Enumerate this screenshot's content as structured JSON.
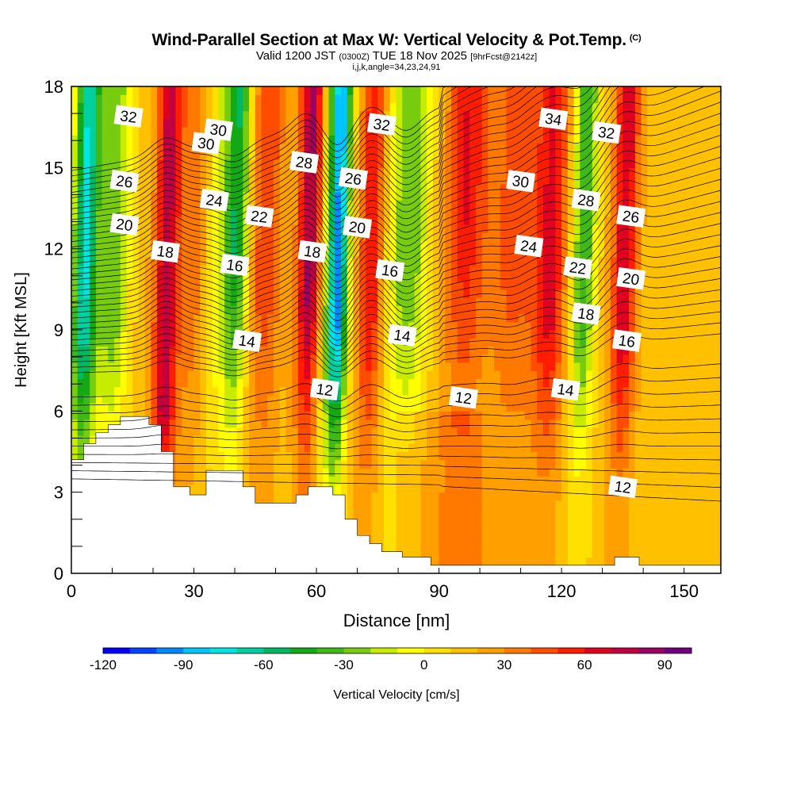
{
  "title": {
    "main": "Wind-Parallel Section at Max W: Vertical Velocity & Pot.Temp.",
    "tag": "(C)",
    "valid_a": "Valid 1200 JST",
    "valid_b": "(0300Z)",
    "valid_c": "TUE 18 Nov 2025",
    "valid_d": "[9hrFcst@2142z]",
    "line3": "i,j,k,angle=34,23,24,91"
  },
  "chart_data": {
    "type": "heatmap",
    "xlabel": "Distance [nm]",
    "ylabel": "Height [Kft MSL]",
    "xlim": [
      0,
      159
    ],
    "ylim": [
      0,
      18
    ],
    "xticks": [
      0,
      30,
      60,
      90,
      120,
      150
    ],
    "yticks": [
      0,
      3,
      6,
      9,
      12,
      15,
      18
    ],
    "colorbar": {
      "label": "Vertical Velocity [cm/s]",
      "range": [
        -120,
        100
      ],
      "ticks": [
        -120,
        -90,
        -60,
        -30,
        0,
        30,
        60,
        90
      ],
      "colors": [
        "#0000ff",
        "#0044ff",
        "#0088ff",
        "#00c4ff",
        "#00e4e4",
        "#00d0a0",
        "#00b860",
        "#14a814",
        "#40b818",
        "#78cc10",
        "#c8ec00",
        "#ffff00",
        "#ffe000",
        "#ffc000",
        "#ffa000",
        "#ff7800",
        "#ff4c00",
        "#ff1c00",
        "#e00020",
        "#c00040",
        "#9c0060",
        "#700080"
      ]
    },
    "theta_contours": {
      "units": "degC",
      "levels": [
        12,
        14,
        16,
        18,
        20,
        22,
        24,
        26,
        28,
        30,
        32,
        34
      ],
      "labels": [
        {
          "text": "32",
          "x": 14,
          "y": 16.9
        },
        {
          "text": "30",
          "x": 33,
          "y": 15.9
        },
        {
          "text": "30",
          "x": 36,
          "y": 16.4
        },
        {
          "text": "26",
          "x": 13,
          "y": 14.5
        },
        {
          "text": "24",
          "x": 35,
          "y": 13.8
        },
        {
          "text": "22",
          "x": 46,
          "y": 13.2
        },
        {
          "text": "28",
          "x": 57,
          "y": 15.2
        },
        {
          "text": "26",
          "x": 69,
          "y": 14.6
        },
        {
          "text": "32",
          "x": 76,
          "y": 16.6
        },
        {
          "text": "20",
          "x": 13,
          "y": 12.9
        },
        {
          "text": "18",
          "x": 23,
          "y": 11.9
        },
        {
          "text": "16",
          "x": 40,
          "y": 11.4
        },
        {
          "text": "18",
          "x": 59,
          "y": 11.9
        },
        {
          "text": "20",
          "x": 70,
          "y": 12.8
        },
        {
          "text": "16",
          "x": 78,
          "y": 11.2
        },
        {
          "text": "14",
          "x": 81,
          "y": 8.8
        },
        {
          "text": "14",
          "x": 43,
          "y": 8.6
        },
        {
          "text": "12",
          "x": 62,
          "y": 6.8
        },
        {
          "text": "12",
          "x": 96,
          "y": 6.5
        },
        {
          "text": "34",
          "x": 118,
          "y": 16.8
        },
        {
          "text": "32",
          "x": 131,
          "y": 16.3
        },
        {
          "text": "30",
          "x": 110,
          "y": 14.5
        },
        {
          "text": "28",
          "x": 126,
          "y": 13.8
        },
        {
          "text": "26",
          "x": 137,
          "y": 13.2
        },
        {
          "text": "24",
          "x": 112,
          "y": 12.1
        },
        {
          "text": "22",
          "x": 124,
          "y": 11.3
        },
        {
          "text": "20",
          "x": 137,
          "y": 10.9
        },
        {
          "text": "18",
          "x": 126,
          "y": 9.6
        },
        {
          "text": "16",
          "x": 136,
          "y": 8.6
        },
        {
          "text": "14",
          "x": 121,
          "y": 6.8
        },
        {
          "text": "12",
          "x": 135,
          "y": 3.2
        }
      ]
    }
  }
}
